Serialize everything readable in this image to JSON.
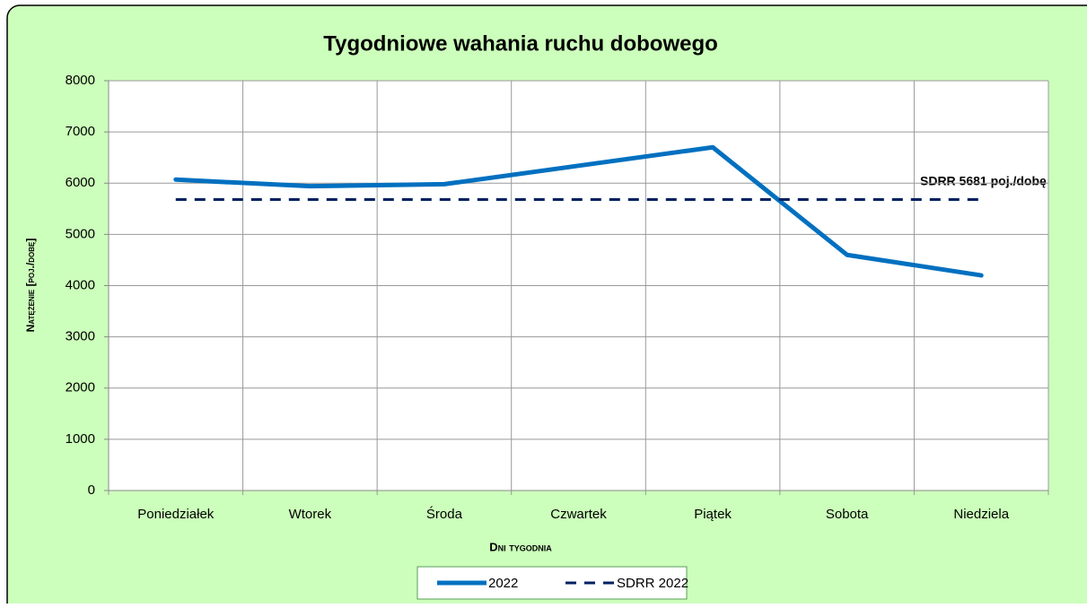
{
  "chart_data": {
    "type": "line",
    "title": "Tygodniowe wahania ruchu dobowego",
    "x_label": "Dni tygodnia",
    "y_label": "Natężenie [poj./dobę]",
    "annotation": "SDRR 5681  poj./dobę",
    "categories": [
      "Poniedziałek",
      "Wtorek",
      "Środa",
      "Czwartek",
      "Piątek",
      "Sobota",
      "Niedziela"
    ],
    "series": [
      {
        "name": "2022",
        "color": "#0070c0",
        "style": "solid",
        "values": [
          6070,
          5940,
          5980,
          6340,
          6700,
          4600,
          4200
        ]
      },
      {
        "name": "SDRR 2022",
        "color": "#002060",
        "style": "dashed",
        "values": [
          5681,
          5681,
          5681,
          5681,
          5681,
          5681,
          5681
        ]
      }
    ],
    "ylim": [
      0,
      8000
    ],
    "yticks": [
      0,
      1000,
      2000,
      3000,
      4000,
      5000,
      6000,
      7000,
      8000
    ],
    "grid": true,
    "legend": "bottom"
  }
}
